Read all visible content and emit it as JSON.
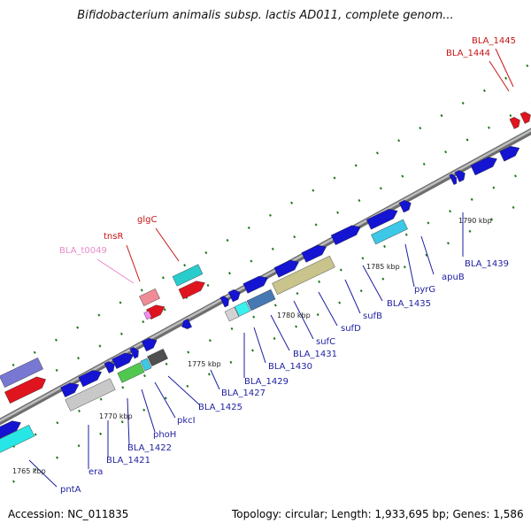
{
  "title": "Bifidobacterium animalis subsp. lactis AD011, complete genom...",
  "footer": {
    "accession": "Accession: NC_011835",
    "summary": "Topology: circular; Length: 1,933,695 bp; Genes: 1,586"
  },
  "colors": {
    "backbone": "#8c8c8c",
    "forward_gene": "#1414d2",
    "rna_red": "#e0141e",
    "label_blue": "#1e1ea0",
    "label_red": "#c81414",
    "label_pink": "#e88cc8",
    "tick_green": "#1e7a1e"
  },
  "kbp_labels": [
    "1765 kbp",
    "1770 kbp",
    "1775 kbp",
    "1780 kbp",
    "1785 kbp",
    "1790 kbp"
  ],
  "gene_labels": [
    {
      "text": "BLA_1445",
      "color": "red"
    },
    {
      "text": "BLA_1444",
      "color": "red"
    },
    {
      "text": "glgC",
      "color": "red"
    },
    {
      "text": "tnsR",
      "color": "red"
    },
    {
      "text": "BLA_t0049",
      "color": "pink"
    },
    {
      "text": "1790 kbp",
      "color": "kbp"
    },
    {
      "text": "BLA_1439",
      "color": "blue"
    },
    {
      "text": "apuB",
      "color": "blue"
    },
    {
      "text": "pyrG",
      "color": "blue"
    },
    {
      "text": "BLA_1435",
      "color": "blue"
    },
    {
      "text": "sufB",
      "color": "blue"
    },
    {
      "text": "sufD",
      "color": "blue"
    },
    {
      "text": "sufC",
      "color": "blue"
    },
    {
      "text": "BLA_1431",
      "color": "blue"
    },
    {
      "text": "BLA_1430",
      "color": "blue"
    },
    {
      "text": "BLA_1429",
      "color": "blue"
    },
    {
      "text": "BLA_1427",
      "color": "blue"
    },
    {
      "text": "BLA_1425",
      "color": "blue"
    },
    {
      "text": "pkcI",
      "color": "blue"
    },
    {
      "text": "phoH",
      "color": "blue"
    },
    {
      "text": "BLA_1422",
      "color": "blue"
    },
    {
      "text": "BLA_1421",
      "color": "blue"
    },
    {
      "text": "era",
      "color": "blue"
    },
    {
      "text": "pntA",
      "color": "blue"
    }
  ]
}
